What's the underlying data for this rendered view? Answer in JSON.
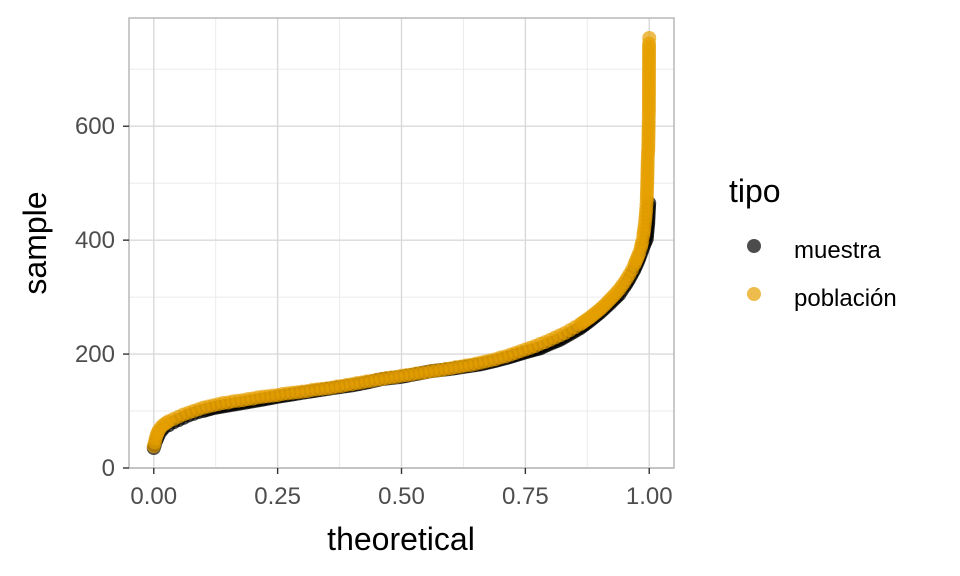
{
  "chart_data": {
    "type": "scatter",
    "xlabel": "theoretical",
    "ylabel": "sample",
    "xlim": [
      -0.05,
      1.05
    ],
    "ylim": [
      0,
      790
    ],
    "x_ticks": [
      0,
      0.25,
      0.5,
      0.75,
      1.0
    ],
    "x_tick_labels": [
      "0.00",
      "0.25",
      "0.50",
      "0.75",
      "1.00"
    ],
    "y_ticks": [
      0,
      200,
      400,
      600
    ],
    "y_tick_labels": [
      "0",
      "200",
      "400",
      "600"
    ],
    "grid": true,
    "legend": {
      "title": "tipo",
      "position": "right"
    },
    "series": [
      {
        "name": "muestra",
        "color": "#000000",
        "opacity": 0.7,
        "points": [
          [
            0.0,
            35
          ],
          [
            0.002,
            40
          ],
          [
            0.005,
            48
          ],
          [
            0.01,
            58
          ],
          [
            0.015,
            65
          ],
          [
            0.02,
            70
          ],
          [
            0.03,
            75
          ],
          [
            0.04,
            80
          ],
          [
            0.05,
            84
          ],
          [
            0.06,
            88
          ],
          [
            0.07,
            92
          ],
          [
            0.08,
            95
          ],
          [
            0.09,
            98
          ],
          [
            0.1,
            100
          ],
          [
            0.12,
            105
          ],
          [
            0.14,
            108
          ],
          [
            0.16,
            111
          ],
          [
            0.18,
            114
          ],
          [
            0.2,
            117
          ],
          [
            0.22,
            120
          ],
          [
            0.25,
            125
          ],
          [
            0.28,
            129
          ],
          [
            0.3,
            132
          ],
          [
            0.33,
            136
          ],
          [
            0.36,
            140
          ],
          [
            0.4,
            145
          ],
          [
            0.43,
            150
          ],
          [
            0.46,
            156
          ],
          [
            0.5,
            160
          ],
          [
            0.53,
            165
          ],
          [
            0.56,
            170
          ],
          [
            0.6,
            174
          ],
          [
            0.63,
            178
          ],
          [
            0.66,
            182
          ],
          [
            0.69,
            188
          ],
          [
            0.72,
            195
          ],
          [
            0.75,
            203
          ],
          [
            0.78,
            210
          ],
          [
            0.8,
            218
          ],
          [
            0.82,
            225
          ],
          [
            0.84,
            235
          ],
          [
            0.86,
            245
          ],
          [
            0.88,
            258
          ],
          [
            0.9,
            272
          ],
          [
            0.92,
            288
          ],
          [
            0.94,
            305
          ],
          [
            0.95,
            318
          ],
          [
            0.96,
            332
          ],
          [
            0.97,
            348
          ],
          [
            0.975,
            358
          ],
          [
            0.98,
            368
          ],
          [
            0.985,
            380
          ],
          [
            0.99,
            392
          ],
          [
            0.995,
            402
          ],
          [
            0.998,
            430
          ],
          [
            1.0,
            465
          ]
        ]
      },
      {
        "name": "población",
        "color": "#E69F00",
        "opacity": 0.7,
        "points": [
          [
            0.0,
            38
          ],
          [
            0.002,
            45
          ],
          [
            0.004,
            52
          ],
          [
            0.006,
            58
          ],
          [
            0.008,
            62
          ],
          [
            0.01,
            66
          ],
          [
            0.015,
            72
          ],
          [
            0.02,
            76
          ],
          [
            0.03,
            82
          ],
          [
            0.04,
            86
          ],
          [
            0.05,
            90
          ],
          [
            0.06,
            94
          ],
          [
            0.07,
            97
          ],
          [
            0.08,
            100
          ],
          [
            0.09,
            103
          ],
          [
            0.1,
            106
          ],
          [
            0.11,
            108
          ],
          [
            0.12,
            110
          ],
          [
            0.13,
            112
          ],
          [
            0.14,
            114
          ],
          [
            0.15,
            115
          ],
          [
            0.16,
            117
          ],
          [
            0.17,
            118
          ],
          [
            0.18,
            119
          ],
          [
            0.19,
            121
          ],
          [
            0.2,
            122
          ],
          [
            0.21,
            124
          ],
          [
            0.22,
            125
          ],
          [
            0.23,
            126
          ],
          [
            0.24,
            127
          ],
          [
            0.25,
            128
          ],
          [
            0.26,
            130
          ],
          [
            0.27,
            131
          ],
          [
            0.28,
            132
          ],
          [
            0.29,
            133
          ],
          [
            0.3,
            134
          ],
          [
            0.31,
            135
          ],
          [
            0.32,
            137
          ],
          [
            0.33,
            138
          ],
          [
            0.34,
            139
          ],
          [
            0.35,
            140
          ],
          [
            0.36,
            141
          ],
          [
            0.37,
            143
          ],
          [
            0.38,
            144
          ],
          [
            0.39,
            146
          ],
          [
            0.4,
            147
          ],
          [
            0.41,
            149
          ],
          [
            0.42,
            150
          ],
          [
            0.43,
            152
          ],
          [
            0.44,
            153
          ],
          [
            0.45,
            155
          ],
          [
            0.46,
            156
          ],
          [
            0.47,
            158
          ],
          [
            0.48,
            159
          ],
          [
            0.49,
            160
          ],
          [
            0.5,
            162
          ],
          [
            0.51,
            163
          ],
          [
            0.52,
            164
          ],
          [
            0.53,
            166
          ],
          [
            0.54,
            167
          ],
          [
            0.55,
            168
          ],
          [
            0.56,
            170
          ],
          [
            0.57,
            171
          ],
          [
            0.58,
            172
          ],
          [
            0.59,
            174
          ],
          [
            0.6,
            175
          ],
          [
            0.61,
            177
          ],
          [
            0.62,
            178
          ],
          [
            0.63,
            180
          ],
          [
            0.64,
            181
          ],
          [
            0.65,
            183
          ],
          [
            0.66,
            185
          ],
          [
            0.67,
            187
          ],
          [
            0.68,
            189
          ],
          [
            0.69,
            191
          ],
          [
            0.7,
            194
          ],
          [
            0.71,
            196
          ],
          [
            0.72,
            199
          ],
          [
            0.73,
            202
          ],
          [
            0.74,
            205
          ],
          [
            0.75,
            208
          ],
          [
            0.76,
            211
          ],
          [
            0.77,
            214
          ],
          [
            0.78,
            218
          ],
          [
            0.79,
            221
          ],
          [
            0.8,
            225
          ],
          [
            0.81,
            229
          ],
          [
            0.82,
            233
          ],
          [
            0.83,
            237
          ],
          [
            0.84,
            242
          ],
          [
            0.85,
            247
          ],
          [
            0.86,
            252
          ],
          [
            0.87,
            258
          ],
          [
            0.88,
            264
          ],
          [
            0.89,
            271
          ],
          [
            0.9,
            278
          ],
          [
            0.91,
            286
          ],
          [
            0.92,
            295
          ],
          [
            0.93,
            304
          ],
          [
            0.94,
            314
          ],
          [
            0.95,
            326
          ],
          [
            0.955,
            333
          ],
          [
            0.96,
            340
          ],
          [
            0.965,
            348
          ],
          [
            0.97,
            357
          ],
          [
            0.975,
            367
          ],
          [
            0.98,
            378
          ],
          [
            0.983,
            387
          ],
          [
            0.986,
            398
          ],
          [
            0.988,
            408
          ],
          [
            0.99,
            420
          ],
          [
            0.992,
            435
          ],
          [
            0.994,
            455
          ],
          [
            0.995,
            470
          ],
          [
            0.996,
            500
          ],
          [
            0.997,
            540
          ],
          [
            0.9975,
            553
          ],
          [
            0.998,
            558
          ],
          [
            0.9985,
            582
          ],
          [
            0.999,
            610
          ],
          [
            0.9993,
            623
          ],
          [
            0.9997,
            745
          ],
          [
            1.0,
            755
          ]
        ]
      }
    ]
  }
}
